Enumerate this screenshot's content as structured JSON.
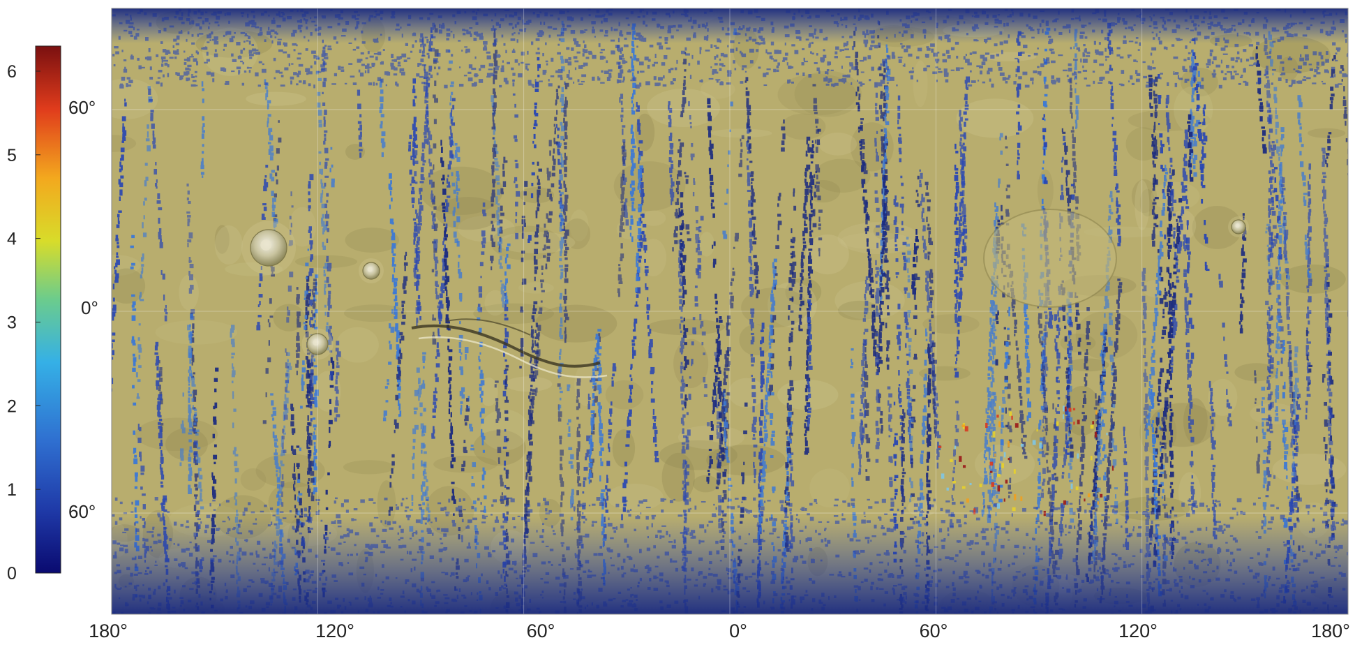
{
  "map": {
    "projection": "equirectangular",
    "longitude_ticks": [
      "180°",
      "120°",
      "60°",
      "0°",
      "60°",
      "120°",
      "180°"
    ],
    "latitude_ticks": [
      "60°",
      "0°",
      "60°"
    ],
    "colors": {
      "terrain": "#b8ad6e",
      "terrain_light": "#cdc58f",
      "terrain_dark": "#8f8650",
      "coverage": "#2846b4",
      "coverage_dark": "#1a2a80",
      "coverage_light": "#3a78d8"
    },
    "features": [
      "volcano",
      "volcano",
      "volcano",
      "canyon",
      "impact-basin",
      "volcano"
    ]
  },
  "colorbar": {
    "ticks": [
      "6",
      "5",
      "4",
      "3",
      "2",
      "1",
      "0"
    ],
    "range": [
      0,
      6.3
    ],
    "colormap": "jet",
    "stops": [
      "#0a0a70",
      "#1f3aa8",
      "#2f6fd0",
      "#35b0e6",
      "#6ccc8c",
      "#d8dc2a",
      "#f3a81e",
      "#e03c1c",
      "#7a1010"
    ]
  }
}
